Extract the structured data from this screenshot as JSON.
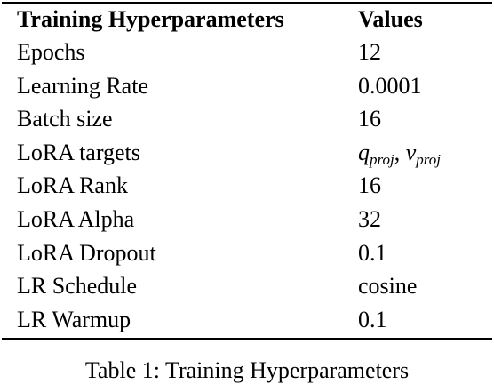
{
  "table": {
    "headers": [
      "Training Hyperparameters",
      "Values"
    ],
    "rows": [
      {
        "param": "Epochs",
        "value": "12"
      },
      {
        "param": "Learning Rate",
        "value": "0.0001"
      },
      {
        "param": "Batch size",
        "value": "16"
      },
      {
        "param": "LoRA targets",
        "value_parts": {
          "a": "q",
          "a_sub": "proj",
          "sep": ", ",
          "b": "v",
          "b_sub": "proj"
        }
      },
      {
        "param": "LoRA Rank",
        "value": "16"
      },
      {
        "param": "LoRA Alpha",
        "value": "32"
      },
      {
        "param": "LoRA Dropout",
        "value": "0.1"
      },
      {
        "param": "LR Schedule",
        "value": "cosine"
      },
      {
        "param": "LR Warmup",
        "value": "0.1"
      }
    ]
  },
  "caption": "Table 1: Training Hyperparameters"
}
